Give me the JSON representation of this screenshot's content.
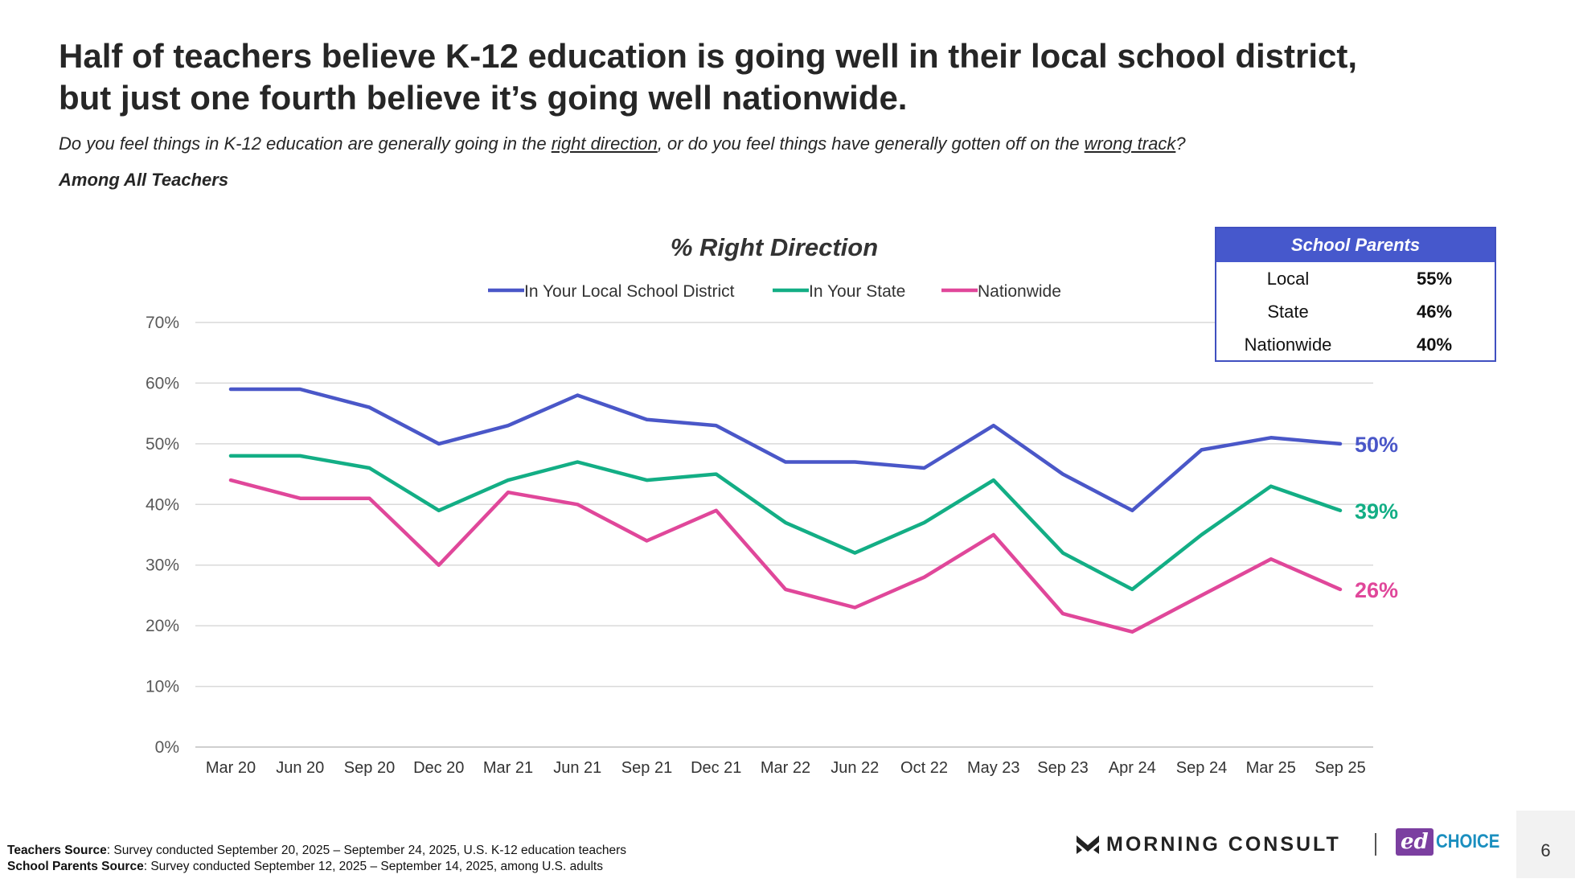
{
  "headline": {
    "line1": "Half of teachers believe K-12 education is going well in their local school district,",
    "line2": "but just one fourth believe it’s going well nationwide."
  },
  "question": {
    "part1": "Do you feel things in K-12 education are generally going in the ",
    "link1": "right direction",
    "part2": ", or do you feel things have generally gotten off on the ",
    "link2": "wrong track",
    "part3": "?"
  },
  "base_label": "Among All Teachers",
  "chart_data": {
    "type": "line",
    "title": "% Right Direction",
    "categories": [
      "Mar 20",
      "Jun 20",
      "Sep 20",
      "Dec 20",
      "Mar 21",
      "Jun 21",
      "Sep 21",
      "Dec 21",
      "Mar 22",
      "Jun 22",
      "Oct 22",
      "May 23",
      "Sep 23",
      "Apr 24",
      "Sep 24",
      "Mar 25",
      "Sep 25"
    ],
    "y_ticks": [
      "0%",
      "10%",
      "20%",
      "30%",
      "40%",
      "50%",
      "60%",
      "70%"
    ],
    "ylim": [
      0,
      70
    ],
    "grid": true,
    "legend_position": "top",
    "series": [
      {
        "name": "In Your Local School District",
        "color": "#4A57C8",
        "values": [
          59,
          59,
          56,
          50,
          53,
          58,
          54,
          53,
          47,
          47,
          46,
          53,
          45,
          39,
          49,
          51,
          50
        ],
        "end_label": "50%"
      },
      {
        "name": "In Your State",
        "color": "#13AE85",
        "values": [
          48,
          48,
          46,
          39,
          44,
          47,
          44,
          45,
          37,
          32,
          37,
          44,
          32,
          26,
          35,
          43,
          39
        ],
        "end_label": "39%"
      },
      {
        "name": "Nationwide",
        "color": "#E0479A",
        "values": [
          44,
          41,
          41,
          30,
          42,
          40,
          34,
          39,
          26,
          23,
          28,
          35,
          22,
          19,
          25,
          31,
          26
        ],
        "end_label": "26%"
      }
    ]
  },
  "parents_table": {
    "title": "School Parents",
    "rows": [
      {
        "label": "Local",
        "value": "55%"
      },
      {
        "label": "State",
        "value": "46%"
      },
      {
        "label": "Nationwide",
        "value": "40%"
      }
    ],
    "border_color": "#4050C0",
    "header_color": "#4658CC"
  },
  "footer": {
    "teachers_label": "Teachers Source",
    "teachers_text": ": Survey conducted September 20, 2025 – September 24, 2025, U.S. K-12 education teachers",
    "parents_label": "School Parents Source",
    "parents_text": ": Survey conducted September 12, 2025 – September 14, 2025, among U.S. adults"
  },
  "logos": {
    "morning_consult": "MORNING CONSULT",
    "edchoice_ed": "ed",
    "edchoice_choice": "CHOICE"
  },
  "page_number": "6"
}
